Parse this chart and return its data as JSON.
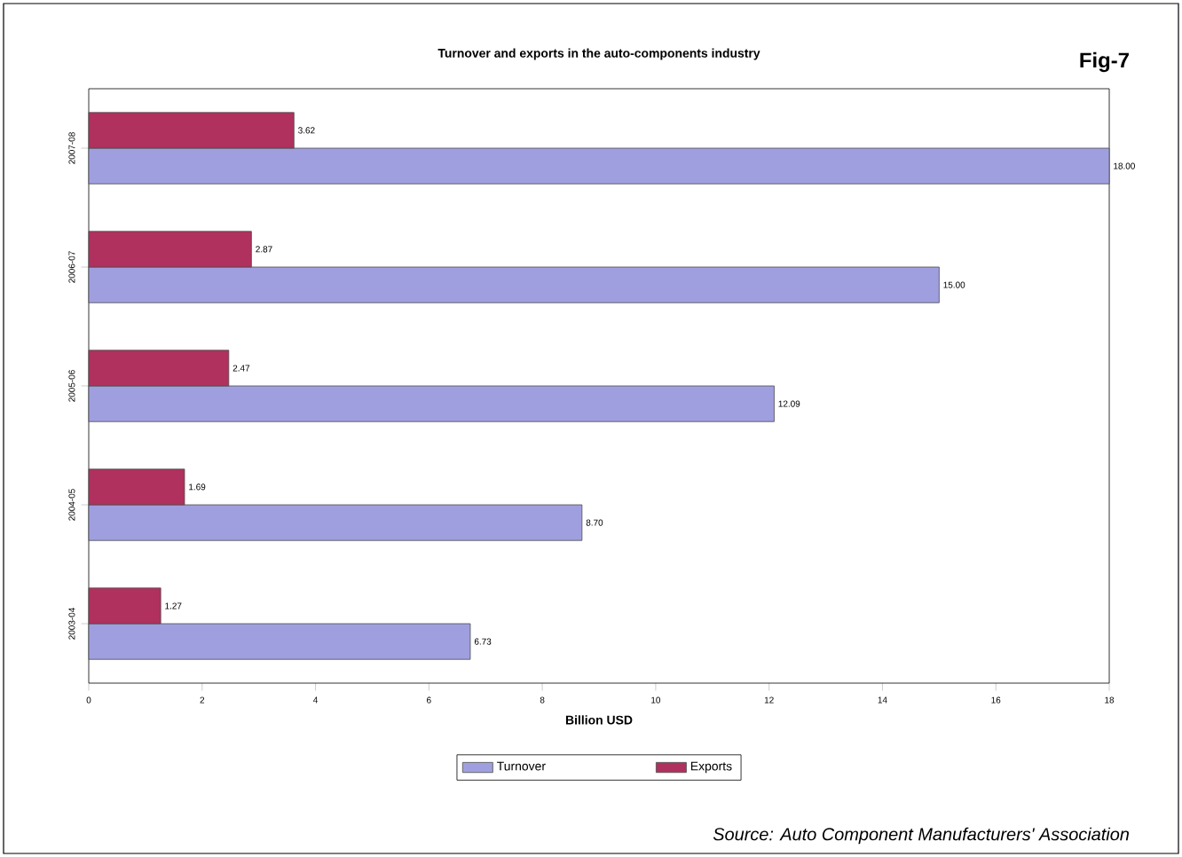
{
  "chart_data": {
    "type": "bar",
    "orientation": "horizontal",
    "title": "Turnover and exports in the auto-components industry",
    "categories": [
      "2007-08",
      "2006-07",
      "2005-06",
      "2004-05",
      "2003-04"
    ],
    "series": [
      {
        "name": "Turnover",
        "color": "#9f9fe0",
        "values": [
          18.0,
          15.0,
          12.09,
          8.7,
          6.73
        ],
        "value_labels": [
          "18.00",
          "15.00",
          "12.09",
          "8.70",
          "6.73"
        ]
      },
      {
        "name": "Exports",
        "color": "#b0305e",
        "values": [
          3.62,
          2.87,
          2.47,
          1.69,
          1.27
        ],
        "value_labels": [
          "3.62",
          "2.87",
          "2.47",
          "1.69",
          "1.27"
        ]
      }
    ],
    "xlabel": "Billion USD",
    "xlim": [
      0,
      18
    ],
    "xticks": [
      0,
      2,
      4,
      6,
      8,
      10,
      12,
      14,
      16,
      18
    ],
    "legend": "bottom",
    "annotations": [
      "Fig-7",
      "Source:  Auto Component Manufacturers' Association"
    ]
  }
}
